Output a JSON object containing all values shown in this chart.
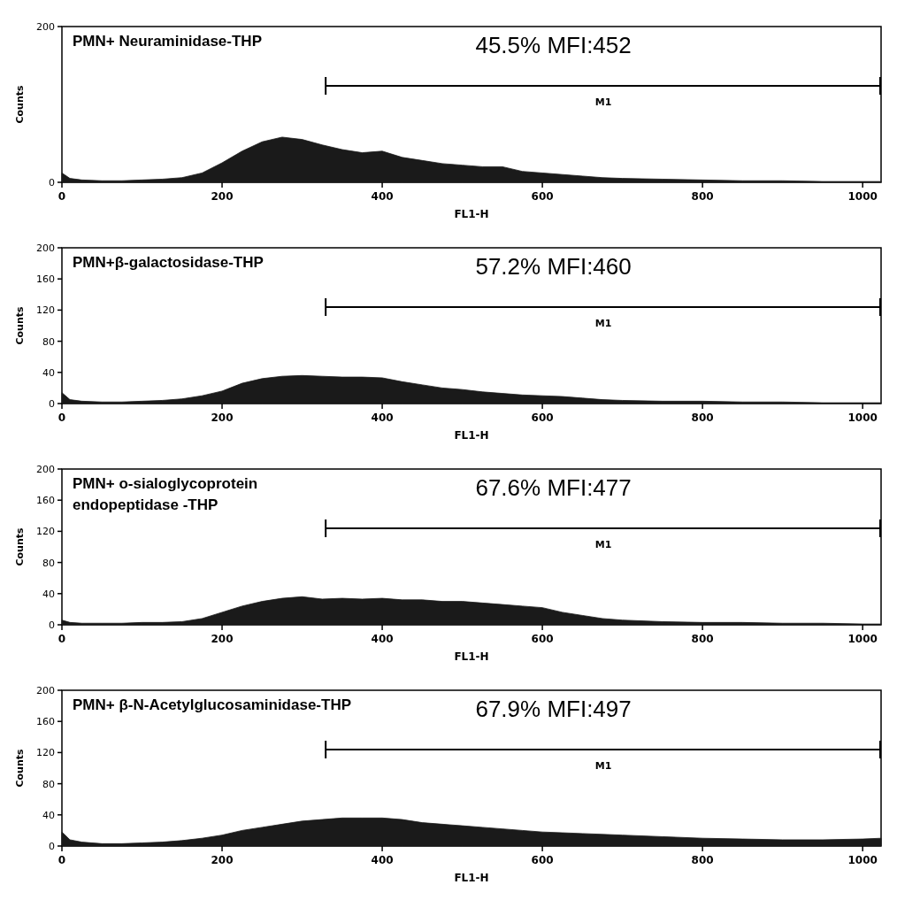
{
  "chart_data": [
    {
      "type": "area",
      "title": "PMN+ Neuraminidase-THP",
      "xlabel": "FL1-H",
      "ylabel": "Counts",
      "annotations": [
        "45.5% MFI:452",
        "M1"
      ],
      "xlim": [
        0,
        1023
      ],
      "xticks": [
        0,
        200,
        400,
        600,
        800,
        1000
      ],
      "ylim": [
        0,
        200
      ],
      "yticks": [
        0,
        200
      ],
      "grid": false,
      "series": [
        {
          "color": "#1a1a1a",
          "x": [
            0,
            10,
            25,
            50,
            75,
            100,
            125,
            150,
            175,
            200,
            225,
            250,
            275,
            300,
            325,
            350,
            375,
            400,
            425,
            450,
            475,
            500,
            525,
            550,
            575,
            600,
            625,
            650,
            675,
            700,
            750,
            800,
            850,
            900,
            950,
            1000,
            1023
          ],
          "values": [
            12,
            5,
            3,
            2,
            2,
            3,
            4,
            6,
            12,
            25,
            40,
            52,
            58,
            55,
            48,
            42,
            38,
            40,
            32,
            28,
            24,
            22,
            20,
            20,
            14,
            12,
            10,
            8,
            6,
            5,
            4,
            3,
            2,
            2,
            1,
            1,
            1
          ]
        }
      ]
    },
    {
      "type": "area",
      "title": "PMN+β-galactosidase-THP",
      "xlabel": "FL1-H",
      "ylabel": "Counts",
      "annotations": [
        "57.2% MFI:460",
        "M1"
      ],
      "xlim": [
        0,
        1023
      ],
      "xticks": [
        0,
        200,
        400,
        600,
        800,
        1000
      ],
      "ylim": [
        0,
        200
      ],
      "yticks": [
        0,
        40,
        80,
        120,
        160,
        200
      ],
      "grid": false,
      "series": [
        {
          "color": "#1a1a1a",
          "x": [
            0,
            10,
            25,
            50,
            75,
            100,
            125,
            150,
            175,
            200,
            225,
            250,
            275,
            300,
            325,
            350,
            375,
            400,
            425,
            450,
            475,
            500,
            525,
            550,
            575,
            600,
            625,
            650,
            675,
            700,
            750,
            800,
            850,
            900,
            950,
            1000,
            1023
          ],
          "values": [
            14,
            5,
            3,
            2,
            2,
            3,
            4,
            6,
            10,
            16,
            26,
            32,
            35,
            36,
            35,
            34,
            34,
            33,
            28,
            24,
            20,
            18,
            15,
            13,
            11,
            10,
            9,
            7,
            5,
            4,
            3,
            3,
            2,
            2,
            1,
            1,
            1
          ]
        }
      ]
    },
    {
      "type": "area",
      "title": "PMN+ o-sialoglycoprotein\nendopeptidase -THP",
      "xlabel": "FL1-H",
      "ylabel": "Counts",
      "annotations": [
        "67.6% MFI:477",
        "M1"
      ],
      "xlim": [
        0,
        1023
      ],
      "xticks": [
        0,
        200,
        400,
        600,
        800,
        1000
      ],
      "ylim": [
        0,
        200
      ],
      "yticks": [
        0,
        40,
        80,
        120,
        160,
        200
      ],
      "grid": false,
      "series": [
        {
          "color": "#1a1a1a",
          "x": [
            0,
            10,
            25,
            50,
            75,
            100,
            125,
            150,
            175,
            200,
            225,
            250,
            275,
            300,
            325,
            350,
            375,
            400,
            425,
            450,
            475,
            500,
            525,
            550,
            575,
            600,
            625,
            650,
            675,
            700,
            750,
            800,
            850,
            900,
            950,
            1000,
            1023
          ],
          "values": [
            6,
            3,
            2,
            2,
            2,
            3,
            3,
            4,
            8,
            16,
            24,
            30,
            34,
            36,
            33,
            34,
            33,
            34,
            32,
            32,
            30,
            30,
            28,
            26,
            24,
            22,
            16,
            12,
            8,
            6,
            4,
            3,
            3,
            2,
            2,
            1,
            1
          ]
        }
      ]
    },
    {
      "type": "area",
      "title": "PMN+ β-N-Acetylglucosaminidase-THP",
      "xlabel": "FL1-H",
      "ylabel": "Counts",
      "annotations": [
        "67.9% MFI:497",
        "M1"
      ],
      "xlim": [
        0,
        1023
      ],
      "xticks": [
        0,
        200,
        400,
        600,
        800,
        1000
      ],
      "ylim": [
        0,
        200
      ],
      "yticks": [
        0,
        40,
        80,
        120,
        160,
        200
      ],
      "grid": false,
      "series": [
        {
          "color": "#1a1a1a",
          "x": [
            0,
            10,
            25,
            50,
            75,
            100,
            125,
            150,
            175,
            200,
            225,
            250,
            275,
            300,
            325,
            350,
            375,
            400,
            425,
            450,
            475,
            500,
            525,
            550,
            575,
            600,
            625,
            650,
            675,
            700,
            750,
            800,
            850,
            900,
            950,
            1000,
            1023
          ],
          "values": [
            18,
            8,
            5,
            3,
            3,
            4,
            5,
            7,
            10,
            14,
            20,
            24,
            28,
            32,
            34,
            36,
            36,
            36,
            34,
            30,
            28,
            26,
            24,
            22,
            20,
            18,
            17,
            16,
            15,
            14,
            12,
            10,
            9,
            8,
            8,
            9,
            10
          ]
        }
      ]
    }
  ]
}
